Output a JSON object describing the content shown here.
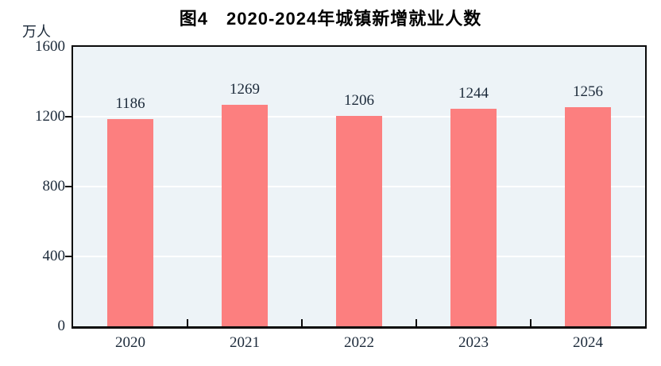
{
  "chart": {
    "title": "图4　2020-2024年城镇新增就业人数",
    "unit": "万人"
  },
  "chart_data": {
    "type": "bar",
    "title": "图4　2020-2024年城镇新增就业人数",
    "categories": [
      "2020",
      "2021",
      "2022",
      "2023",
      "2024"
    ],
    "values": [
      1186,
      1269,
      1206,
      1244,
      1256
    ],
    "data_labels": [
      1186,
      1269,
      1206,
      1244,
      1256
    ],
    "xlabel": "",
    "ylabel": "万人",
    "ylim": [
      0,
      1600
    ],
    "yticks": [
      0,
      400,
      800,
      1200,
      1600
    ],
    "gridlines_at": [
      400,
      800,
      1200
    ],
    "grid": true,
    "legend": "none",
    "colors": {
      "bar": "#fc7f7f",
      "plot_background": "#edf3f7",
      "gridline": "#ffffff",
      "axis": "#0a0a0a",
      "text": "#1c2a3a",
      "title_text": "#000000",
      "page_background": "#ffffff"
    }
  }
}
